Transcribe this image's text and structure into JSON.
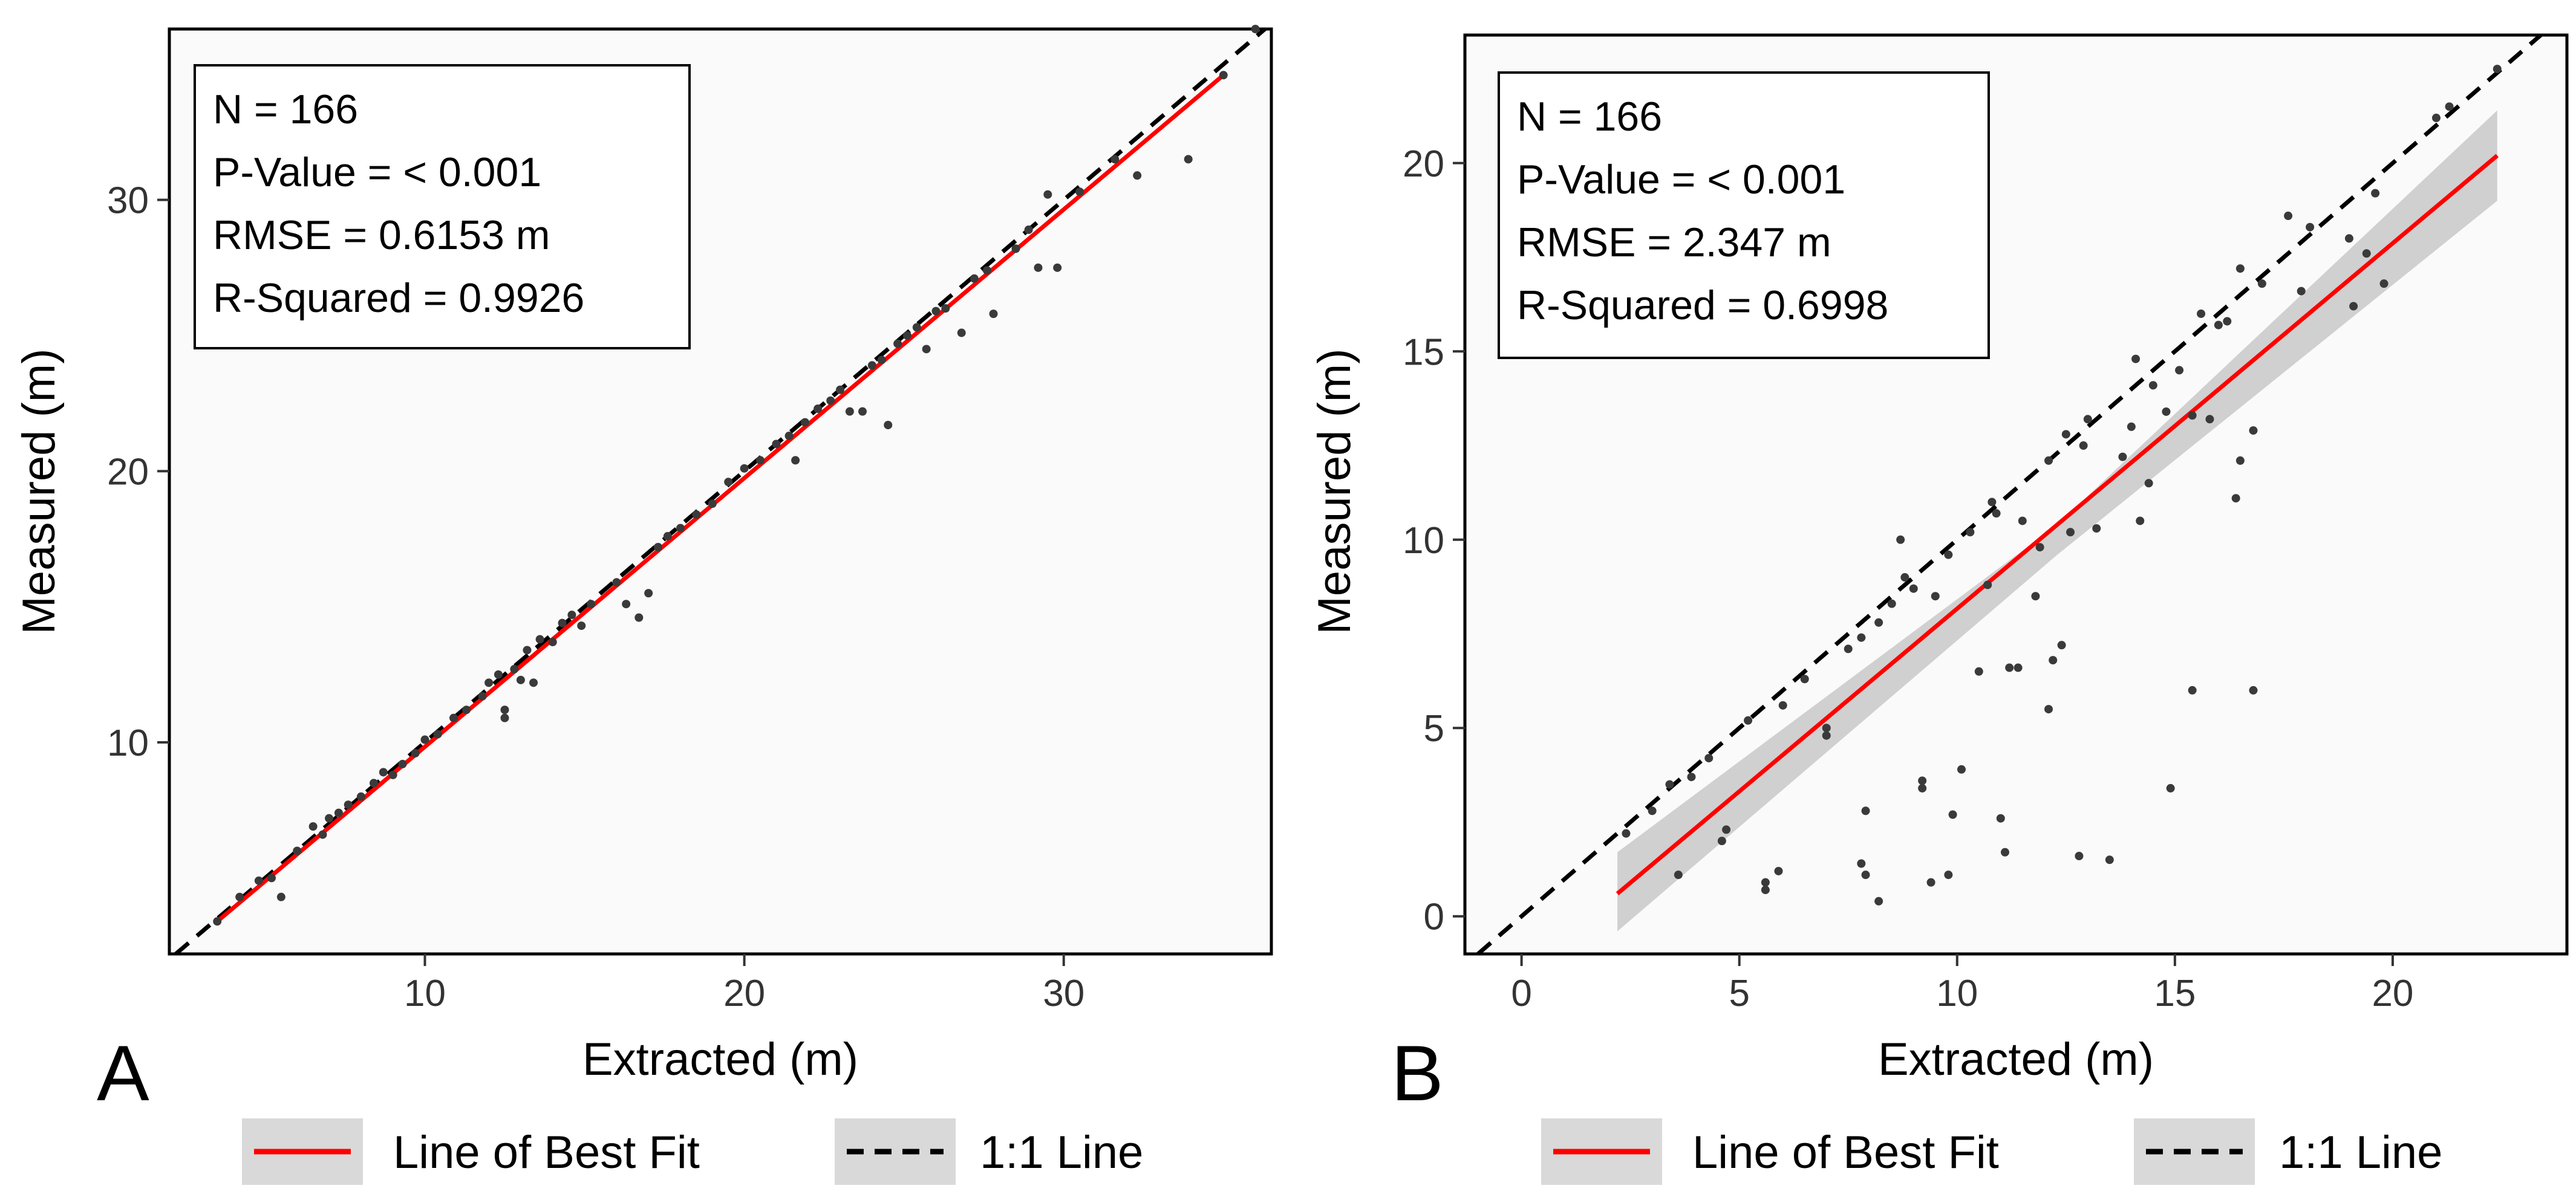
{
  "chart_data": [
    {
      "type": "scatter",
      "panel": "A",
      "xlabel": "Extracted (m)",
      "ylabel": "Measured (m)",
      "xlim": [
        2,
        36.5
      ],
      "ylim": [
        2.2,
        36.3
      ],
      "xticks": [
        10,
        20,
        30
      ],
      "yticks": [
        10,
        20,
        30
      ],
      "stats": [
        "N = 166",
        "P-Value = < 0.001",
        "RMSE = 0.6153 m",
        "R-Squared = 0.9926"
      ],
      "fit_line": {
        "x": [
          3.5,
          35.0
        ],
        "y": [
          3.4,
          34.6
        ]
      },
      "one_to_one": {
        "x": [
          2,
          36.5
        ],
        "y": [
          2,
          36.5
        ]
      },
      "points": [
        [
          3.5,
          3.4
        ],
        [
          4.2,
          4.3
        ],
        [
          4.8,
          4.9
        ],
        [
          5.2,
          5.0
        ],
        [
          5.5,
          4.3
        ],
        [
          6.0,
          6.0
        ],
        [
          6.5,
          6.9
        ],
        [
          6.8,
          6.6
        ],
        [
          7.0,
          7.2
        ],
        [
          7.3,
          7.4
        ],
        [
          7.6,
          7.7
        ],
        [
          8.0,
          8.0
        ],
        [
          8.4,
          8.5
        ],
        [
          8.7,
          8.9
        ],
        [
          9.0,
          8.8
        ],
        [
          9.3,
          9.2
        ],
        [
          9.7,
          9.6
        ],
        [
          10.0,
          10.1
        ],
        [
          10.4,
          10.3
        ],
        [
          10.9,
          10.9
        ],
        [
          11.3,
          11.2
        ],
        [
          11.8,
          11.7
        ],
        [
          12.0,
          12.2
        ],
        [
          12.3,
          12.5
        ],
        [
          12.5,
          11.2
        ],
        [
          12.5,
          10.9
        ],
        [
          12.8,
          12.7
        ],
        [
          13.0,
          12.3
        ],
        [
          13.2,
          13.4
        ],
        [
          13.4,
          12.2
        ],
        [
          13.6,
          13.8
        ],
        [
          14.0,
          13.7
        ],
        [
          14.3,
          14.4
        ],
        [
          14.6,
          14.7
        ],
        [
          14.9,
          14.3
        ],
        [
          15.2,
          15.1
        ],
        [
          16.0,
          15.9
        ],
        [
          16.3,
          15.1
        ],
        [
          16.7,
          14.6
        ],
        [
          17.0,
          15.5
        ],
        [
          17.3,
          17.2
        ],
        [
          17.6,
          17.6
        ],
        [
          18.0,
          17.9
        ],
        [
          18.5,
          18.4
        ],
        [
          19.0,
          18.8
        ],
        [
          19.5,
          19.6
        ],
        [
          20.0,
          20.1
        ],
        [
          20.5,
          20.4
        ],
        [
          21.0,
          21.0
        ],
        [
          21.4,
          21.3
        ],
        [
          21.6,
          20.4
        ],
        [
          21.9,
          21.8
        ],
        [
          22.3,
          22.3
        ],
        [
          22.7,
          22.6
        ],
        [
          23.0,
          23.0
        ],
        [
          23.3,
          22.2
        ],
        [
          23.7,
          22.2
        ],
        [
          24.0,
          23.9
        ],
        [
          24.3,
          24.1
        ],
        [
          24.5,
          21.7
        ],
        [
          24.8,
          24.7
        ],
        [
          25.1,
          25.0
        ],
        [
          25.4,
          25.3
        ],
        [
          25.7,
          24.5
        ],
        [
          26.0,
          25.9
        ],
        [
          26.3,
          26.0
        ],
        [
          26.8,
          25.1
        ],
        [
          27.2,
          27.1
        ],
        [
          27.6,
          27.4
        ],
        [
          27.8,
          25.8
        ],
        [
          28.5,
          28.2
        ],
        [
          28.9,
          28.9
        ],
        [
          29.2,
          27.5
        ],
        [
          29.8,
          27.5
        ],
        [
          29.5,
          30.2
        ],
        [
          30.5,
          30.3
        ],
        [
          31.6,
          31.5
        ],
        [
          32.3,
          30.9
        ],
        [
          33.9,
          31.5
        ],
        [
          35.0,
          34.6
        ],
        [
          36.0,
          36.3
        ]
      ]
    },
    {
      "type": "scatter",
      "panel": "B",
      "xlabel": "Extracted (m)",
      "ylabel": "Measured (m)",
      "xlim": [
        -1.3,
        24
      ],
      "ylim": [
        -1.0,
        23.4
      ],
      "xticks": [
        0,
        5,
        10,
        15,
        20
      ],
      "yticks": [
        0,
        5,
        10,
        15,
        20
      ],
      "stats": [
        "N = 166",
        "P-Value = < 0.001",
        "RMSE = 2.347 m",
        "R-Squared = 0.6998"
      ],
      "fit_line": {
        "x": [
          2.2,
          22.4
        ],
        "y": [
          0.6,
          20.2
        ]
      },
      "one_to_one": {
        "x": [
          0,
          24
        ],
        "y": [
          0,
          24
        ]
      },
      "ci_band": {
        "x": [
          2.2,
          12.3,
          22.4
        ],
        "upper": [
          1.7,
          10.4,
          21.4
        ],
        "lower": [
          -0.4,
          9.6,
          19.0
        ]
      },
      "points": [
        [
          2.4,
          2.2
        ],
        [
          3.0,
          2.8
        ],
        [
          3.4,
          3.5
        ],
        [
          3.6,
          1.1
        ],
        [
          3.9,
          3.7
        ],
        [
          4.3,
          4.2
        ],
        [
          4.7,
          2.3
        ],
        [
          4.6,
          2.0
        ],
        [
          5.2,
          5.2
        ],
        [
          5.6,
          0.9
        ],
        [
          5.6,
          0.7
        ],
        [
          5.9,
          1.2
        ],
        [
          6.0,
          5.6
        ],
        [
          6.5,
          6.3
        ],
        [
          7.0,
          5.0
        ],
        [
          7.0,
          4.8
        ],
        [
          7.5,
          7.1
        ],
        [
          7.8,
          7.4
        ],
        [
          7.9,
          2.8
        ],
        [
          7.8,
          1.4
        ],
        [
          7.9,
          1.1
        ],
        [
          8.2,
          0.4
        ],
        [
          8.2,
          7.8
        ],
        [
          8.5,
          8.3
        ],
        [
          8.7,
          10.0
        ],
        [
          8.8,
          9.0
        ],
        [
          9.0,
          8.7
        ],
        [
          9.2,
          3.6
        ],
        [
          9.2,
          3.4
        ],
        [
          9.4,
          0.9
        ],
        [
          9.5,
          8.5
        ],
        [
          9.8,
          1.1
        ],
        [
          9.8,
          9.6
        ],
        [
          9.9,
          2.7
        ],
        [
          10.1,
          3.9
        ],
        [
          10.3,
          10.2
        ],
        [
          10.5,
          6.5
        ],
        [
          10.7,
          8.8
        ],
        [
          10.8,
          11.0
        ],
        [
          10.9,
          10.7
        ],
        [
          11.0,
          2.6
        ],
        [
          11.1,
          1.7
        ],
        [
          11.2,
          6.6
        ],
        [
          11.4,
          6.6
        ],
        [
          11.5,
          10.5
        ],
        [
          11.8,
          8.5
        ],
        [
          11.9,
          9.8
        ],
        [
          12.1,
          12.1
        ],
        [
          12.1,
          5.5
        ],
        [
          12.2,
          6.8
        ],
        [
          12.4,
          7.2
        ],
        [
          12.5,
          12.8
        ],
        [
          12.6,
          10.2
        ],
        [
          12.9,
          12.5
        ],
        [
          12.8,
          1.6
        ],
        [
          13.0,
          13.2
        ],
        [
          13.2,
          10.3
        ],
        [
          13.5,
          1.5
        ],
        [
          13.8,
          12.2
        ],
        [
          14.0,
          13.0
        ],
        [
          14.1,
          14.8
        ],
        [
          14.2,
          10.5
        ],
        [
          14.4,
          11.5
        ],
        [
          14.5,
          14.1
        ],
        [
          14.8,
          13.4
        ],
        [
          14.9,
          3.4
        ],
        [
          15.1,
          14.5
        ],
        [
          15.4,
          13.3
        ],
        [
          15.4,
          6.0
        ],
        [
          15.6,
          16.0
        ],
        [
          15.8,
          13.2
        ],
        [
          16.0,
          15.7
        ],
        [
          16.2,
          15.8
        ],
        [
          16.4,
          11.1
        ],
        [
          16.5,
          12.1
        ],
        [
          16.5,
          17.2
        ],
        [
          16.8,
          12.9
        ],
        [
          16.8,
          6.0
        ],
        [
          17.0,
          16.8
        ],
        [
          17.6,
          18.6
        ],
        [
          17.9,
          16.6
        ],
        [
          18.1,
          18.3
        ],
        [
          19.0,
          18.0
        ],
        [
          19.1,
          16.2
        ],
        [
          19.4,
          17.6
        ],
        [
          19.6,
          19.2
        ],
        [
          19.8,
          16.8
        ],
        [
          21.0,
          21.2
        ],
        [
          21.3,
          21.5
        ],
        [
          22.4,
          22.5
        ]
      ]
    }
  ],
  "panels": {
    "a": {
      "letter": "A",
      "xlabel": "Extracted (m)",
      "ylabel": "Measured (m)",
      "stats": [
        "N = 166",
        "P-Value = < 0.001",
        "RMSE = 0.6153 m",
        "R-Squared = 0.9926"
      ],
      "xticks": [
        "10",
        "20",
        "30"
      ],
      "yticks": [
        "10",
        "20",
        "30"
      ]
    },
    "b": {
      "letter": "B",
      "xlabel": "Extracted (m)",
      "ylabel": "Measured (m)",
      "stats": [
        "N = 166",
        "P-Value = < 0.001",
        "RMSE = 2.347 m",
        "R-Squared = 0.6998"
      ],
      "xticks": [
        "0",
        "5",
        "10",
        "15",
        "20"
      ],
      "yticks": [
        "0",
        "5",
        "10",
        "15",
        "20"
      ]
    }
  },
  "legend": {
    "best_fit_label": "Line of Best Fit",
    "one_to_one_label": "1:1 Line",
    "best_fit_color": "#ff0000",
    "one_to_one_color": "#000000"
  }
}
